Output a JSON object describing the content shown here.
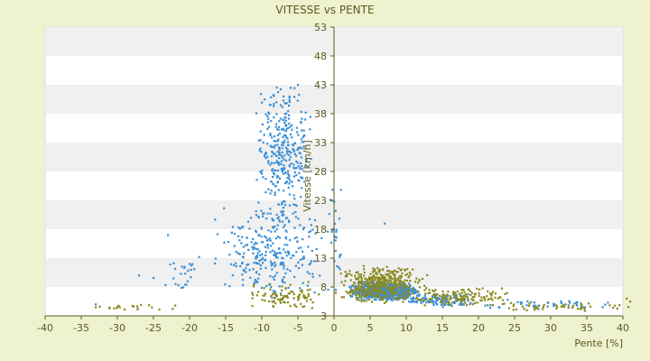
{
  "chart_data": {
    "type": "scatter",
    "title": "VITESSE vs PENTE",
    "xlabel": "Pente [%]",
    "ylabel": "Vitesse [km/h]",
    "xlim": [
      -40,
      40
    ],
    "ylim": [
      3,
      53
    ],
    "xticks": [
      -40,
      -35,
      -30,
      -25,
      -20,
      -15,
      -10,
      -5,
      0,
      5,
      10,
      15,
      20,
      25,
      30,
      35,
      40
    ],
    "yticks": [
      3,
      8,
      13,
      18,
      23,
      28,
      33,
      38,
      43,
      48,
      53
    ],
    "grid": "horizontal alternating bands",
    "legend": "none",
    "colors": {
      "background": "#eef2cf",
      "plot": "#ffffff",
      "band": "#f0f0f0",
      "axis": "#5a5a20"
    },
    "series": [
      {
        "color": "#3a8fd8",
        "clusters": [
          {
            "x": [
              -11,
              -3
            ],
            "y": [
              18,
              44
            ],
            "n": 320
          },
          {
            "x": [
              -17,
              -1
            ],
            "y": [
              6,
              22
            ],
            "n": 280
          },
          {
            "x": [
              -26,
              -17
            ],
            "y": [
              6,
              14
            ],
            "n": 25
          },
          {
            "x": [
              2,
              12
            ],
            "y": [
              5.5,
              9
            ],
            "n": 650
          },
          {
            "x": [
              10,
              20
            ],
            "y": [
              4.5,
              7
            ],
            "n": 120
          },
          {
            "x": [
              18,
              40
            ],
            "y": [
              4,
              6
            ],
            "n": 40
          },
          {
            "x": [
              -1,
              1
            ],
            "y": [
              4,
              28
            ],
            "n": 30
          }
        ],
        "points": [
          [
            -7,
            41
          ],
          [
            -5,
            43
          ],
          [
            -6,
            42.5
          ],
          [
            -8,
            40
          ],
          [
            -4,
            37
          ],
          [
            -9,
            38
          ],
          [
            7,
            19
          ],
          [
            -23,
            17
          ],
          [
            -20,
            12
          ],
          [
            -33,
            5
          ],
          [
            -27,
            10
          ]
        ]
      },
      {
        "color": "#8a8a20",
        "clusters": [
          {
            "x": [
              0,
              13
            ],
            "y": [
              5,
              12
            ],
            "n": 420
          },
          {
            "x": [
              10,
              25
            ],
            "y": [
              4.5,
              8
            ],
            "n": 140
          },
          {
            "x": [
              -12,
              -2
            ],
            "y": [
              4,
              9
            ],
            "n": 90
          },
          {
            "x": [
              20,
              42
            ],
            "y": [
              3.8,
              5.5
            ],
            "n": 50
          },
          {
            "x": [
              -34,
              -20
            ],
            "y": [
              3.8,
              5
            ],
            "n": 18
          }
        ],
        "points": [
          [
            40.5,
            6
          ],
          [
            41,
            5.5
          ],
          [
            -33,
            4.5
          ],
          [
            -30,
            4.6
          ],
          [
            -22,
            4.8
          ]
        ]
      }
    ]
  }
}
